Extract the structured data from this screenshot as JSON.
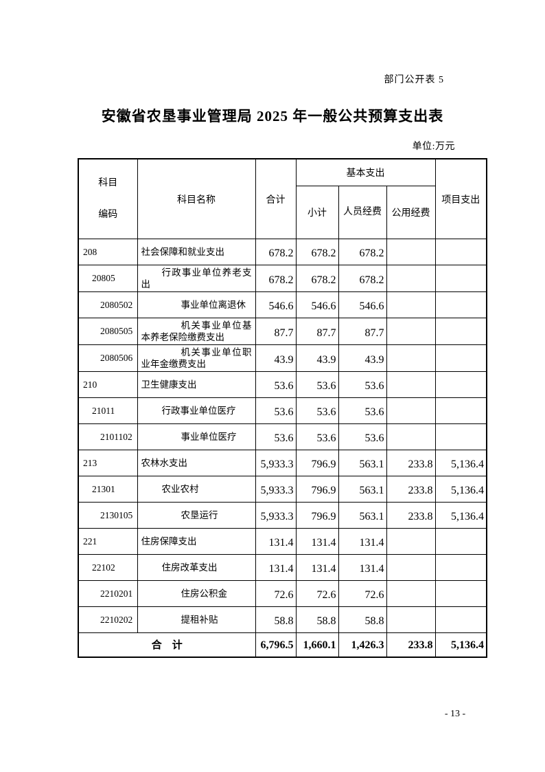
{
  "page": {
    "doc_label": "部门公开表 5",
    "title": "安徽省农垦事业管理局 2025 年一般公共预算支出表",
    "unit_note": "单位:万元",
    "page_number": "- 13 -"
  },
  "table": {
    "header": {
      "code_line1": "科目",
      "code_line2": "编码",
      "name": "科目名称",
      "total": "合计",
      "basic_group": "基本支出",
      "subtotal": "小计",
      "personnel": "人员经费",
      "public_funds": "公用经费",
      "project": "项目支出"
    },
    "rows": [
      {
        "code": "208",
        "name": "社会保障和就业支出",
        "total": "678.2",
        "subtotal": "678.2",
        "personnel": "678.2",
        "public": "",
        "project": ""
      },
      {
        "code": "20805",
        "name": "行政事业单位养老支出",
        "total": "678.2",
        "subtotal": "678.2",
        "personnel": "678.2",
        "public": "",
        "project": ""
      },
      {
        "code": "2080502",
        "name": "事业单位离退休",
        "total": "546.6",
        "subtotal": "546.6",
        "personnel": "546.6",
        "public": "",
        "project": ""
      },
      {
        "code": "2080505",
        "name": "机关事业单位基本养老保险缴费支出",
        "total": "87.7",
        "subtotal": "87.7",
        "personnel": "87.7",
        "public": "",
        "project": ""
      },
      {
        "code": "2080506",
        "name": "机关事业单位职业年金缴费支出",
        "total": "43.9",
        "subtotal": "43.9",
        "personnel": "43.9",
        "public": "",
        "project": ""
      },
      {
        "code": "210",
        "name": "卫生健康支出",
        "total": "53.6",
        "subtotal": "53.6",
        "personnel": "53.6",
        "public": "",
        "project": ""
      },
      {
        "code": "21011",
        "name": "行政事业单位医疗",
        "total": "53.6",
        "subtotal": "53.6",
        "personnel": "53.6",
        "public": "",
        "project": ""
      },
      {
        "code": "2101102",
        "name": "事业单位医疗",
        "total": "53.6",
        "subtotal": "53.6",
        "personnel": "53.6",
        "public": "",
        "project": ""
      },
      {
        "code": "213",
        "name": "农林水支出",
        "total": "5,933.3",
        "subtotal": "796.9",
        "personnel": "563.1",
        "public": "233.8",
        "project": "5,136.4"
      },
      {
        "code": "21301",
        "name": "农业农村",
        "total": "5,933.3",
        "subtotal": "796.9",
        "personnel": "563.1",
        "public": "233.8",
        "project": "5,136.4"
      },
      {
        "code": "2130105",
        "name": "农垦运行",
        "total": "5,933.3",
        "subtotal": "796.9",
        "personnel": "563.1",
        "public": "233.8",
        "project": "5,136.4"
      },
      {
        "code": "221",
        "name": "住房保障支出",
        "total": "131.4",
        "subtotal": "131.4",
        "personnel": "131.4",
        "public": "",
        "project": ""
      },
      {
        "code": "22102",
        "name": "住房改革支出",
        "total": "131.4",
        "subtotal": "131.4",
        "personnel": "131.4",
        "public": "",
        "project": ""
      },
      {
        "code": "2210201",
        "name": "住房公积金",
        "total": "72.6",
        "subtotal": "72.6",
        "personnel": "72.6",
        "public": "",
        "project": ""
      },
      {
        "code": "2210202",
        "name": "提租补贴",
        "total": "58.8",
        "subtotal": "58.8",
        "personnel": "58.8",
        "public": "",
        "project": ""
      }
    ],
    "total_row": {
      "label": "合　计",
      "total": "6,796.5",
      "subtotal": "1,660.1",
      "personnel": "1,426.3",
      "public": "233.8",
      "project": "5,136.4"
    }
  }
}
